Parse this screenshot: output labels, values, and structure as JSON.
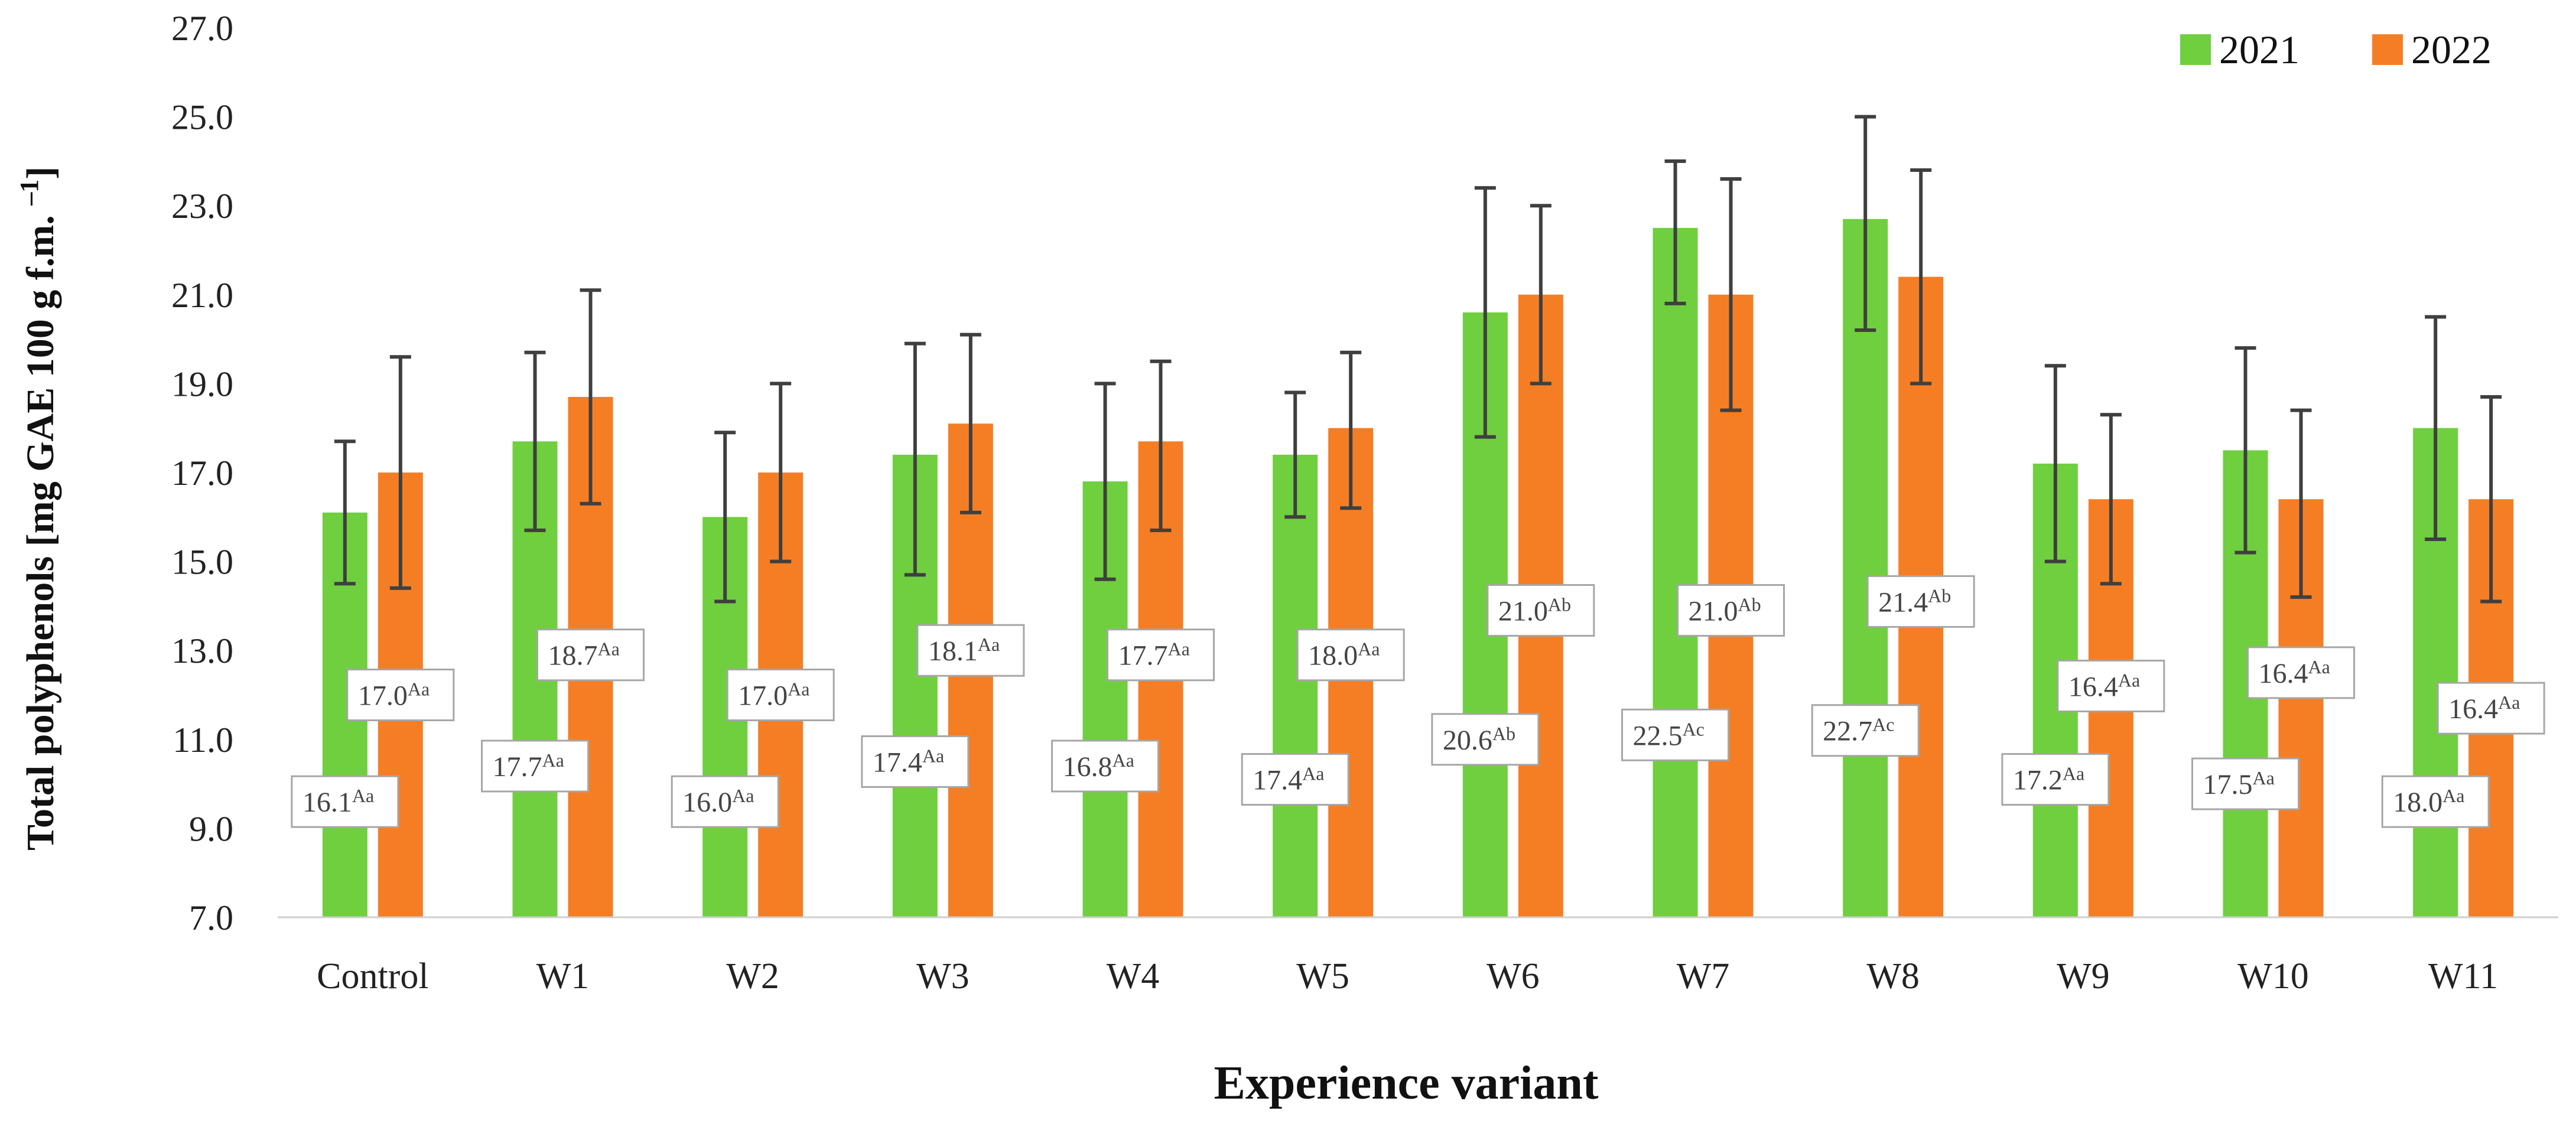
{
  "chart_data": {
    "type": "bar",
    "title": "",
    "xlabel": "Experience variant",
    "ylabel": "Total polyphenols [mg GAE 100 g f.m. ",
    "ylabel_suffix": "–1",
    "ylabel_sup": "]",
    "ylim": [
      7.0,
      27.0
    ],
    "yticks": [
      "7.0",
      "9.0",
      "11.0",
      "13.0",
      "15.0",
      "17.0",
      "19.0",
      "21.0",
      "23.0",
      "25.0",
      "27.0"
    ],
    "grid": false,
    "legend_position": "top-right",
    "categories": [
      "Control",
      "W1",
      "W2",
      "W3",
      "W4",
      "W5",
      "W6",
      "W7",
      "W8",
      "W9",
      "W10",
      "W11"
    ],
    "series": [
      {
        "name": "2021",
        "color": "#6fcf3f",
        "values": [
          16.1,
          17.7,
          16.0,
          17.4,
          16.8,
          17.4,
          20.6,
          22.5,
          22.7,
          17.2,
          17.5,
          18.0
        ],
        "error_low": [
          14.5,
          15.7,
          14.1,
          14.7,
          14.6,
          16.0,
          17.8,
          20.8,
          20.2,
          15.0,
          15.2,
          15.5
        ],
        "error_high": [
          17.7,
          19.7,
          17.9,
          19.9,
          19.0,
          18.8,
          23.4,
          24.0,
          25.0,
          19.4,
          19.8,
          20.5
        ],
        "labels": [
          "16.1",
          "17.7",
          "16.0",
          "17.4",
          "16.8",
          "17.4",
          "20.6",
          "22.5",
          "22.7",
          "17.2",
          "17.5",
          "18.0"
        ],
        "label_sup": [
          "Aa",
          "Aa",
          "Aa",
          "Aa",
          "Aa",
          "Aa",
          "Ab",
          "Ac",
          "Ac",
          "Aa",
          "Aa",
          "Aa"
        ],
        "label_y": [
          9.6,
          10.4,
          9.6,
          10.5,
          10.4,
          10.1,
          11.0,
          11.1,
          11.2,
          10.1,
          10.0,
          9.6
        ]
      },
      {
        "name": "2022",
        "color": "#f57e25",
        "values": [
          17.0,
          18.7,
          17.0,
          18.1,
          17.7,
          18.0,
          21.0,
          21.0,
          21.4,
          16.4,
          16.4,
          16.4
        ],
        "error_low": [
          14.4,
          16.3,
          15.0,
          16.1,
          15.7,
          16.2,
          19.0,
          18.4,
          19.0,
          14.5,
          14.2,
          14.1
        ],
        "error_high": [
          19.6,
          21.1,
          19.0,
          20.1,
          19.5,
          19.7,
          23.0,
          23.6,
          23.8,
          18.3,
          18.4,
          18.7
        ],
        "labels": [
          "17.0",
          "18.7",
          "17.0",
          "18.1",
          "17.7",
          "18.0",
          "21.0",
          "21.0",
          "21.4",
          "16.4",
          "16.4",
          "16.4"
        ],
        "label_sup": [
          "Aa",
          "Aa",
          "Aa",
          "Aa",
          "Aa",
          "Aa",
          "Ab",
          "Ab",
          "Ab",
          "Aa",
          "Aa",
          "Aa"
        ],
        "label_y": [
          12.0,
          12.9,
          12.0,
          13.0,
          12.9,
          12.9,
          13.9,
          13.9,
          14.1,
          12.2,
          12.5,
          11.7
        ]
      }
    ]
  }
}
